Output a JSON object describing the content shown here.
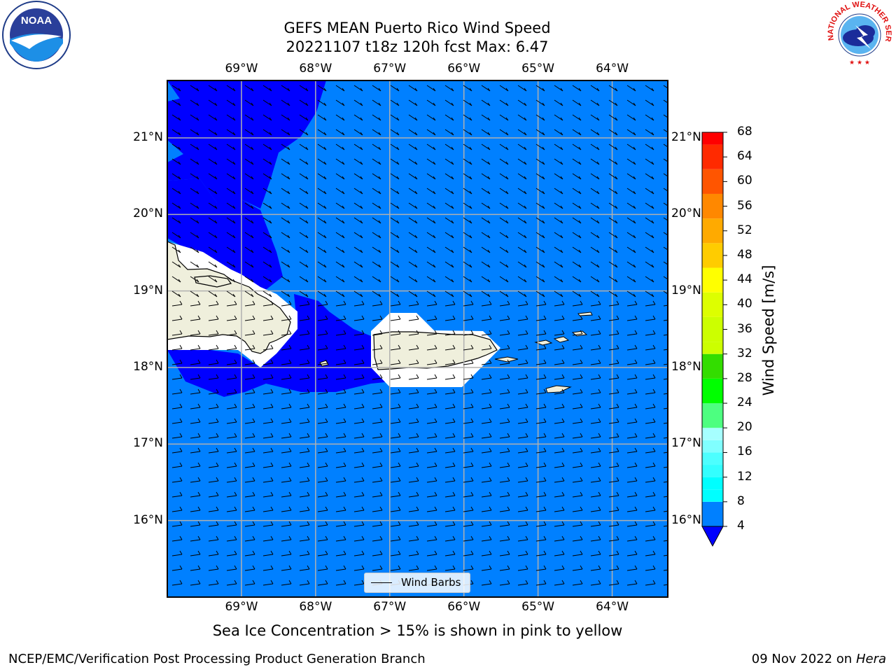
{
  "title_line1": "GEFS MEAN Puerto Rico Wind Speed",
  "title_line2": "20221107 t18z 120h fcst   Max: 6.47",
  "map": {
    "lon_range": [
      -70.0,
      -63.25
    ],
    "lat_range": [
      15.0,
      21.75
    ],
    "lon_ticks": [
      -69,
      -68,
      -67,
      -66,
      -65,
      -64
    ],
    "lat_ticks": [
      16,
      17,
      18,
      19,
      20,
      21
    ],
    "lon_tick_labels": [
      "69°W",
      "68°W",
      "67°W",
      "66°W",
      "65°W",
      "64°W"
    ],
    "lat_tick_labels": [
      "16°N",
      "17°N",
      "18°N",
      "19°N",
      "20°N",
      "21°N"
    ],
    "ocean_color": "#0080ff",
    "low_wind_color": "#0000ff",
    "land_color": "#efefdc",
    "gridlines": true
  },
  "legend_label": "Wind Barbs",
  "colorbar": {
    "label": "Wind Speed [m/s]",
    "ticks": [
      4,
      8,
      12,
      16,
      20,
      24,
      28,
      32,
      36,
      40,
      44,
      48,
      52,
      56,
      60,
      64,
      68
    ],
    "tick_labels": [
      "4",
      "8",
      "12",
      "16",
      "20",
      "24",
      "28",
      "32",
      "36",
      "40",
      "44",
      "48",
      "52",
      "56",
      "60",
      "64",
      "68"
    ],
    "extend_min_color": "#0000ff",
    "bins": [
      {
        "from": 4,
        "to": 8,
        "color": "#0080ff"
      },
      {
        "from": 8,
        "to": 10,
        "color": "#00ffff"
      },
      {
        "from": 10,
        "to": 12,
        "color": "#00ffff"
      },
      {
        "from": 12,
        "to": 14,
        "color": "#33ffff"
      },
      {
        "from": 14,
        "to": 16,
        "color": "#4dffff"
      },
      {
        "from": 16,
        "to": 18,
        "color": "#80ffff"
      },
      {
        "from": 18,
        "to": 20,
        "color": "#a6ffff"
      },
      {
        "from": 20,
        "to": 24,
        "color": "#4dff80"
      },
      {
        "from": 24,
        "to": 28,
        "color": "#00ff00"
      },
      {
        "from": 28,
        "to": 32,
        "color": "#33dd00"
      },
      {
        "from": 32,
        "to": 34,
        "color": "#ccff00"
      },
      {
        "from": 34,
        "to": 38,
        "color": "#ccff00"
      },
      {
        "from": 38,
        "to": 42,
        "color": "#ddff00"
      },
      {
        "from": 42,
        "to": 46,
        "color": "#ffff00"
      },
      {
        "from": 46,
        "to": 50,
        "color": "#ffcc00"
      },
      {
        "from": 50,
        "to": 54,
        "color": "#ffaa00"
      },
      {
        "from": 54,
        "to": 58,
        "color": "#ff8800"
      },
      {
        "from": 58,
        "to": 62,
        "color": "#ff5500"
      },
      {
        "from": 62,
        "to": 66,
        "color": "#ff2a00"
      },
      {
        "from": 66,
        "to": 68,
        "color": "#ff0000"
      }
    ]
  },
  "caption": "Sea Ice Concentration > 15% is shown in pink to yellow",
  "footer_left": "NCEP/EMC/Verification Post Processing Product Generation Branch",
  "footer_date": "09 Nov 2022 on",
  "footer_host": "Hera",
  "logos": {
    "left": {
      "icon": "noaa-logo",
      "text": "NOAA"
    },
    "right": {
      "icon": "nws-logo",
      "text": "NATIONAL WEATHER SERVICE"
    }
  }
}
